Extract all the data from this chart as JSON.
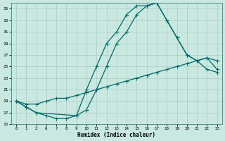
{
  "background_color": "#c8e8e0",
  "grid_color": "#b0d0c8",
  "line_color": "#006868",
  "xlabel": "Humidex (Indice chaleur)",
  "ylim": [
    15,
    36
  ],
  "yticks": [
    15,
    17,
    19,
    21,
    23,
    25,
    27,
    29,
    31,
    33,
    35
  ],
  "xlabel_labels": [
    "0",
    "1",
    "2",
    "6",
    "7",
    "8",
    "9",
    "10",
    "11",
    "12",
    "13",
    "14",
    "15",
    "16",
    "17",
    "18",
    "19",
    "20",
    "21",
    "22",
    "23"
  ],
  "line1_pos": [
    0,
    1,
    2,
    3,
    4,
    5,
    6,
    7,
    8,
    9,
    10,
    11,
    12,
    13,
    14,
    15,
    16,
    17,
    18,
    19,
    20
  ],
  "line1_y": [
    19,
    18,
    17,
    16.5,
    16,
    16,
    16.5,
    21,
    25,
    29,
    31,
    34,
    35.5,
    35.5,
    36,
    33,
    30,
    27,
    26,
    24.5,
    24
  ],
  "line2_pos": [
    0,
    1,
    2,
    3,
    4,
    5,
    6,
    7,
    8,
    9,
    10,
    11,
    12,
    13,
    14,
    15,
    16,
    17,
    18,
    19,
    20
  ],
  "line2_y": [
    19,
    18.5,
    18.5,
    19,
    19.5,
    19.5,
    20,
    20.5,
    21,
    21.5,
    22,
    22.5,
    23,
    23.5,
    24,
    24.5,
    25,
    25.5,
    26,
    26.5,
    24.5
  ],
  "line3_pos": [
    0,
    1,
    2,
    6,
    7,
    8,
    9,
    10,
    11,
    12,
    13,
    14,
    15,
    16,
    17,
    18,
    19,
    20
  ],
  "line3_y": [
    19,
    18,
    17,
    16.5,
    17.5,
    21,
    25,
    29,
    31,
    34,
    35.5,
    36,
    33,
    30,
    27,
    26,
    26.5,
    26
  ]
}
